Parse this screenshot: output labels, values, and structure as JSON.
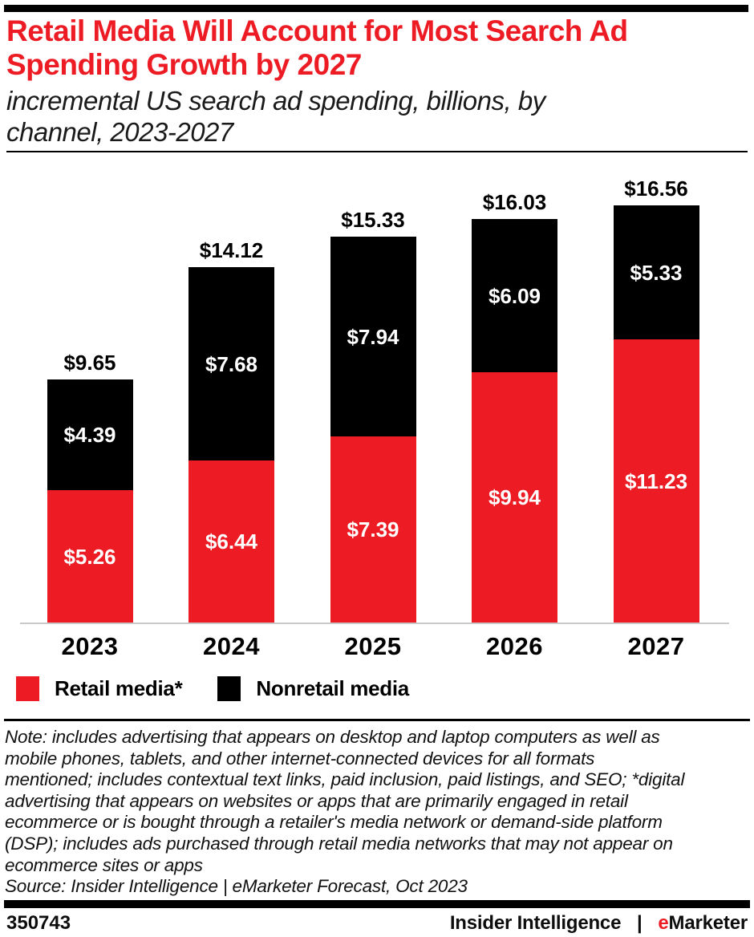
{
  "header": {
    "title_lines": [
      "Retail Media Will Account for Most Search Ad",
      "Spending Growth by 2027"
    ],
    "subtitle_lines": [
      "incremental US search ad spending, billions, by",
      "channel, 2023-2027"
    ]
  },
  "chart_data": {
    "type": "bar",
    "stacked": true,
    "title": "Retail Media Will Account for Most Search Ad Spending Growth by 2027",
    "subtitle": "incremental US search ad spending, billions, by channel, 2023-2027",
    "unit": "US$ billions, incremental search ad spending",
    "categories": [
      "2023",
      "2024",
      "2025",
      "2026",
      "2027"
    ],
    "series": [
      {
        "name": "Retail media*",
        "color": "#ED1C24",
        "values": [
          5.26,
          6.44,
          7.39,
          9.94,
          11.23
        ],
        "labels": [
          "$5.26",
          "$6.44",
          "$7.39",
          "$9.94",
          "$11.23"
        ]
      },
      {
        "name": "Nonretail media",
        "color": "#000000",
        "values": [
          4.39,
          7.68,
          7.94,
          6.09,
          5.33
        ],
        "labels": [
          "$4.39",
          "$7.68",
          "$7.94",
          "$6.09",
          "$5.33"
        ]
      }
    ],
    "totals": [
      9.65,
      14.12,
      15.33,
      16.03,
      16.56
    ],
    "total_labels": [
      "$9.65",
      "$14.12",
      "$15.33",
      "$16.03",
      "$16.56"
    ],
    "ylim": [
      0,
      18
    ],
    "grid": false,
    "legend_position": "bottom"
  },
  "legend": {
    "items": [
      {
        "label": "Retail media*",
        "color": "#ED1C24"
      },
      {
        "label": "Nonretail media",
        "color": "#000000"
      }
    ]
  },
  "note": {
    "lines": [
      "Note: includes advertising that appears on desktop and laptop computers as well as",
      "mobile phones, tablets, and other internet-connected devices for all formats",
      "mentioned; includes contextual text links, paid inclusion, paid listings, and SEO; *digital",
      "advertising that appears on websites or apps that are primarily engaged in retail",
      "ecommerce or is bought through a retailer's media network or demand-side platform",
      "(DSP); includes ads purchased through retail media networks that may not appear on",
      "ecommerce sites or apps"
    ],
    "source": "Source: Insider Intelligence | eMarketer Forecast, Oct 2023"
  },
  "footer": {
    "chart_id": "350743",
    "brand_left": "Insider Intelligence",
    "separator": "|",
    "brand_red": "e",
    "brand_rest": "Marketer"
  },
  "colors": {
    "accent_red": "#ED1C24",
    "bar_black": "#000000",
    "axis_line": "#c9c9c9"
  }
}
